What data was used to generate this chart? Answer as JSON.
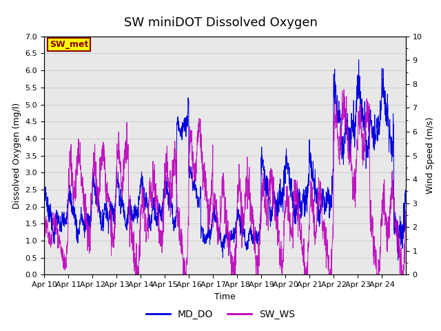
{
  "title": "SW miniDOT Dissolved Oxygen",
  "xlabel": "Time",
  "ylabel_left": "Dissolved Oxygen (mg/l)",
  "ylabel_right": "Wind Speed (m/s)",
  "ylim_left": [
    0.0,
    7.0
  ],
  "ylim_right": [
    0.0,
    10.0
  ],
  "yticks_left": [
    0.0,
    0.5,
    1.0,
    1.5,
    2.0,
    2.5,
    3.0,
    3.5,
    4.0,
    4.5,
    5.0,
    5.5,
    6.0,
    6.5,
    7.0
  ],
  "yticks_right": [
    0.0,
    1.0,
    2.0,
    3.0,
    4.0,
    5.0,
    6.0,
    7.0,
    8.0,
    9.0,
    10.0
  ],
  "line_blue_color": "#0000dd",
  "line_magenta_color": "#bb00bb",
  "legend_labels": [
    "MD_DO",
    "SW_WS"
  ],
  "annotation_text": "SW_met",
  "annotation_bg": "#ffff00",
  "annotation_border": "#8B0000",
  "annotation_text_color": "#8B0000",
  "plot_bg_color": "#e8e8e8",
  "fig_bg_color": "#ffffff",
  "grid_color": "#d0d0d0",
  "title_fontsize": 13,
  "axis_fontsize": 9,
  "tick_fontsize": 8,
  "legend_fontsize": 10,
  "n_points": 2160
}
